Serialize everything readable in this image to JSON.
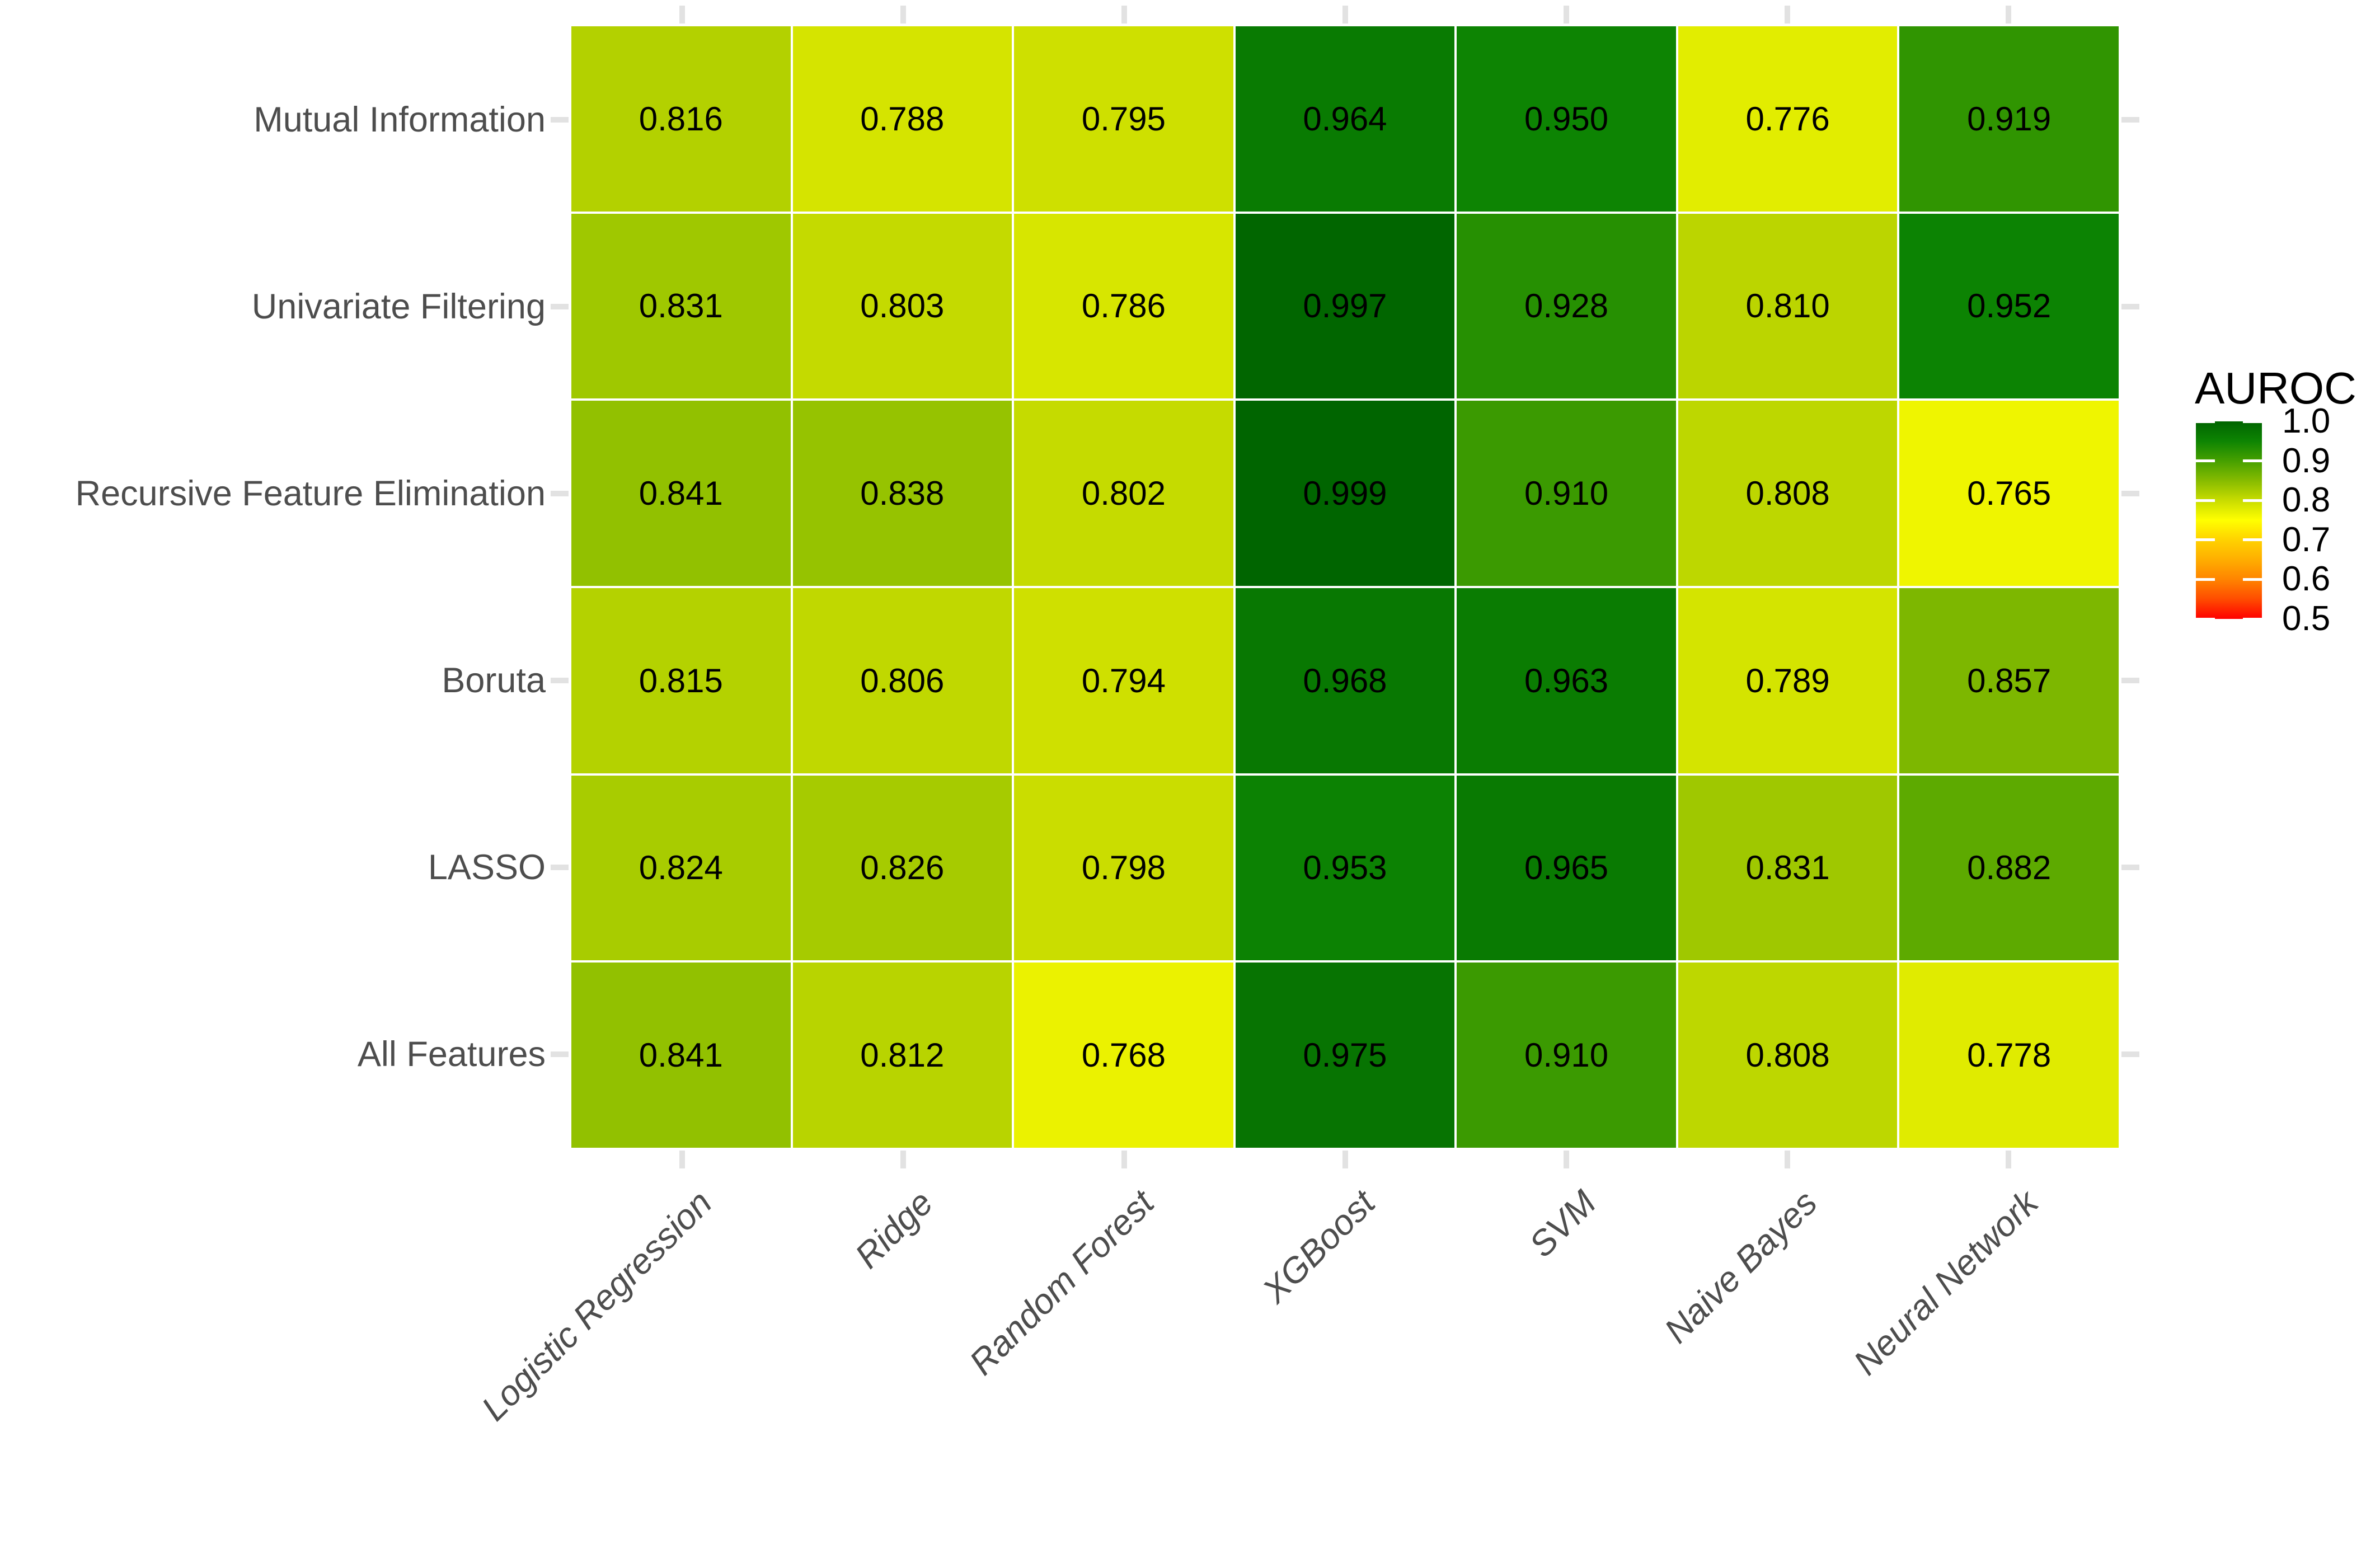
{
  "chart_data": {
    "type": "heatmap",
    "title": "",
    "legend_title": "AUROC",
    "x_categories": [
      "Logistic Regression",
      "Ridge",
      "Random Forest",
      "XGBoost",
      "SVM",
      "Naive Bayes",
      "Neural Network"
    ],
    "y_categories": [
      "Mutual Information",
      "Univariate Filtering",
      "Recursive Feature Elimination",
      "Boruta",
      "LASSO",
      "All Features"
    ],
    "series": [
      {
        "name": "Mutual Information",
        "values": [
          0.816,
          0.788,
          0.795,
          0.964,
          0.95,
          0.776,
          0.919
        ]
      },
      {
        "name": "Univariate Filtering",
        "values": [
          0.831,
          0.803,
          0.786,
          0.997,
          0.928,
          0.81,
          0.952
        ]
      },
      {
        "name": "Recursive Feature Elimination",
        "values": [
          0.841,
          0.838,
          0.802,
          0.999,
          0.91,
          0.808,
          0.765
        ]
      },
      {
        "name": "Boruta",
        "values": [
          0.815,
          0.806,
          0.794,
          0.968,
          0.963,
          0.789,
          0.857
        ]
      },
      {
        "name": "LASSO",
        "values": [
          0.824,
          0.826,
          0.798,
          0.953,
          0.965,
          0.831,
          0.882
        ]
      },
      {
        "name": "All Features",
        "values": [
          0.841,
          0.812,
          0.768,
          0.975,
          0.91,
          0.808,
          0.778
        ]
      }
    ],
    "value_decimals": 3,
    "legend_ticks": [
      1.0,
      0.9,
      0.8,
      0.7,
      0.6,
      0.5
    ],
    "legend_tick_decimals": 1,
    "color_domain": [
      0.5,
      1.0
    ],
    "color_stops": [
      [
        0.5,
        "#ff0000"
      ],
      [
        0.55,
        "#ff4c00"
      ],
      [
        0.6,
        "#ff8400"
      ],
      [
        0.65,
        "#ffae00"
      ],
      [
        0.7,
        "#ffd200"
      ],
      [
        0.75,
        "#ffff00"
      ],
      [
        0.8,
        "#c8dc00"
      ],
      [
        0.85,
        "#86bb00"
      ],
      [
        0.9,
        "#46a000"
      ],
      [
        0.95,
        "#0d8403"
      ],
      [
        1.0,
        "#006400"
      ]
    ],
    "grid_on": false,
    "legend_position": "right",
    "axis_text_color": "#4d4d4d",
    "tick_mark_color": "#e2e2e2",
    "cell_text_color": "#000000",
    "background_color": "#ffffff"
  }
}
